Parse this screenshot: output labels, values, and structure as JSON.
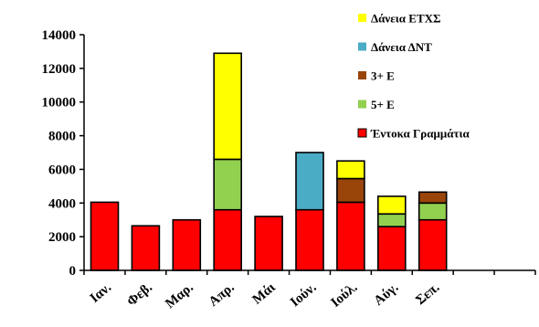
{
  "chart_data": {
    "type": "bar",
    "stacked": true,
    "title": "",
    "xlabel": "",
    "ylabel": "",
    "categories": [
      "Ιαν.",
      "Φεβ.",
      "Μαρ.",
      "Απρ.",
      "Μάι",
      "Ιούν.",
      "Ιούλ.",
      "Αύγ.",
      "Σεπ."
    ],
    "slots": 11,
    "ylim": [
      0,
      14000
    ],
    "yticks": [
      "0",
      "2000",
      "4000",
      "6000",
      "8000",
      "10000",
      "12000",
      "14000"
    ],
    "grid": false,
    "legend_position": "top-right",
    "series": [
      {
        "name": "Έντοκα Γραμμάτια",
        "color": "#ff0000",
        "values": [
          4050,
          2650,
          3000,
          3600,
          3200,
          3600,
          4050,
          2600,
          3000
        ]
      },
      {
        "name": "5+ Ε",
        "color": "#92d050",
        "values": [
          0,
          0,
          0,
          3000,
          0,
          0,
          0,
          750,
          1000
        ]
      },
      {
        "name": "3+ Ε",
        "color": "#99450a",
        "values": [
          0,
          0,
          0,
          0,
          0,
          0,
          1400,
          0,
          650
        ]
      },
      {
        "name": "Δάνεια ΔΝΤ",
        "color": "#4bacc6",
        "values": [
          0,
          0,
          0,
          0,
          0,
          3400,
          0,
          0,
          0
        ]
      },
      {
        "name": "Δάνεια ΕΤΧΣ",
        "color": "#ffff00",
        "values": [
          0,
          0,
          0,
          6300,
          0,
          0,
          1050,
          1050,
          0
        ]
      }
    ],
    "legend_order": [
      "Δάνεια ΕΤΧΣ",
      "Δάνεια ΔΝΤ",
      "3+ Ε",
      "5+ Ε",
      "Έντοκα Γραμμάτια"
    ]
  }
}
